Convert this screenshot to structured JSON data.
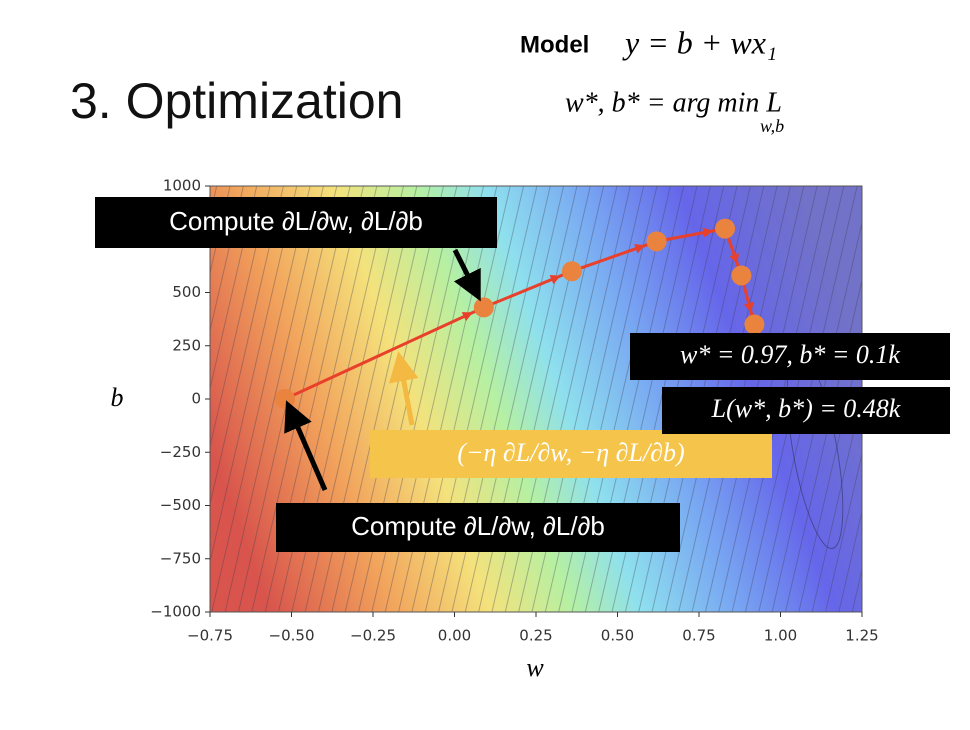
{
  "title": "3. Optimization",
  "model_label": "Model",
  "model_formula": "y = b + wx₁",
  "objective": "w*, b* = arg min L",
  "objective_subscript": "w,b",
  "chart_data": {
    "type": "line",
    "xlabel": "w",
    "ylabel": "b",
    "x": [
      -0.52,
      0.09,
      0.36,
      0.62,
      0.83,
      0.88,
      0.92
    ],
    "series": [
      {
        "color": "#e8402a",
        "values": [
          0,
          430,
          600,
          740,
          800,
          580,
          350
        ]
      }
    ],
    "point_color": "#e9833e",
    "xlim": [
      -0.75,
      1.25
    ],
    "ylim": [
      -1000,
      1000
    ],
    "xticks": [
      {
        "value": -0.75,
        "label": "−0.75"
      },
      {
        "value": -0.5,
        "label": "−0.50"
      },
      {
        "value": -0.25,
        "label": "−0.25"
      },
      {
        "value": 0,
        "label": "0.00"
      },
      {
        "value": 0.25,
        "label": "0.25"
      },
      {
        "value": 0.5,
        "label": "0.50"
      },
      {
        "value": 0.75,
        "label": "0.75"
      },
      {
        "value": 1,
        "label": "1.00"
      },
      {
        "value": 1.25,
        "label": "1.25"
      }
    ],
    "yticks": [
      1000,
      500,
      250,
      0,
      {
        "value": -250,
        "label": "−250"
      },
      {
        "value": -500,
        "label": "−500"
      },
      {
        "value": -750,
        "label": "−750"
      },
      {
        "value": -1000,
        "label": "−1000"
      }
    ],
    "annotations": [
      "Compute ∂L/∂w, ∂L/∂b",
      "(−η ∂L/∂w, −η ∂L/∂b)",
      "Compute ∂L/∂w, ∂L/∂b",
      "w* = 0.97, b* = 0.1k",
      "L(w*, b*) = 0.48k"
    ]
  }
}
